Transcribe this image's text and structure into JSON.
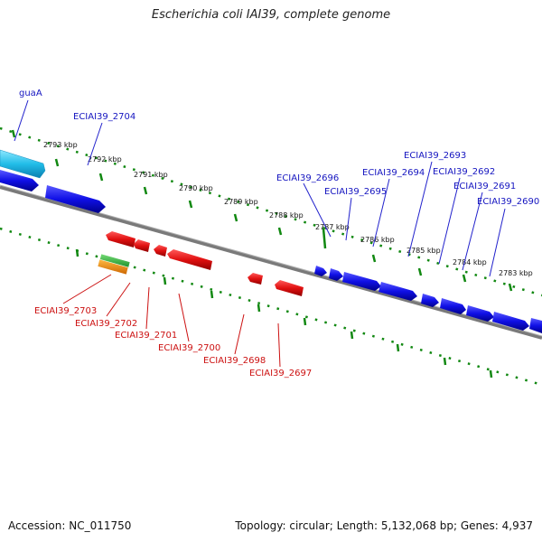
{
  "title": "Escherichia coli IAI39, complete genome",
  "footer": {
    "accession": "Accession: NC_011750",
    "summary": "Topology: circular; Length: 5,132,068 bp; Genes: 4,937"
  },
  "colors": {
    "forward_gene": "#1010e6",
    "reverse_gene": "#e01010",
    "rna_green": "#22aa33",
    "rna_orange": "#ee8800",
    "highlight_gene": "#22bde8",
    "backbone": "#808080",
    "ruler": "#118811",
    "forward_label": "#1515c0",
    "reverse_label": "#cc1111"
  },
  "ruler_labels": [
    "2793 kbp",
    "2792 kbp",
    "2791 kbp",
    "2790 kbp",
    "2789 kbp",
    "2788 kbp",
    "2787 kbp",
    "2786 kbp",
    "2785 kbp",
    "2784 kbp",
    "2783 kbp"
  ],
  "forward_labels": [
    "guaA",
    "ECIAI39_2704",
    "ECIAI39_2696",
    "ECIAI39_2695",
    "ECIAI39_2694",
    "ECIAI39_2693",
    "ECIAI39_2692",
    "ECIAI39_2691",
    "ECIAI39_2690"
  ],
  "reverse_labels": [
    "ECIAI39_2703",
    "ECIAI39_2702",
    "ECIAI39_2701",
    "ECIAI39_2700",
    "ECIAI39_2698",
    "ECIAI39_2697"
  ]
}
